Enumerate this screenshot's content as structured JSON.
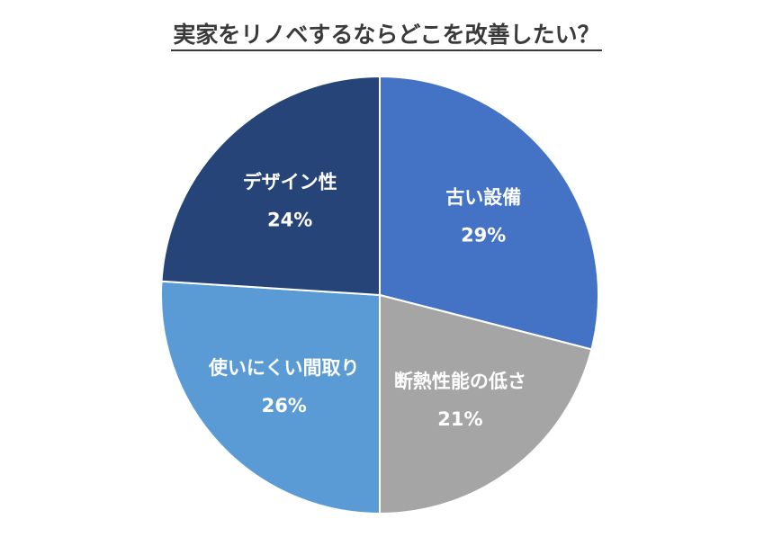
{
  "chart_data": {
    "type": "pie",
    "title": "実家をリノベするならどこを改善したい？",
    "slices": [
      {
        "label": "古い設備",
        "value": 29,
        "value_label": "29%",
        "color": "#4472C4"
      },
      {
        "label": "断熱性能の低さ",
        "value": 21,
        "value_label": "21%",
        "color": "#A5A5A5"
      },
      {
        "label": "使いにくい間取り",
        "value": 26,
        "value_label": "26%",
        "color": "#5B9BD5"
      },
      {
        "label": "デザイン性",
        "value": 24,
        "value_label": "24%",
        "color": "#264478"
      }
    ],
    "start_angle": "12 o'clock",
    "direction": "clockwise",
    "legend": "none"
  }
}
